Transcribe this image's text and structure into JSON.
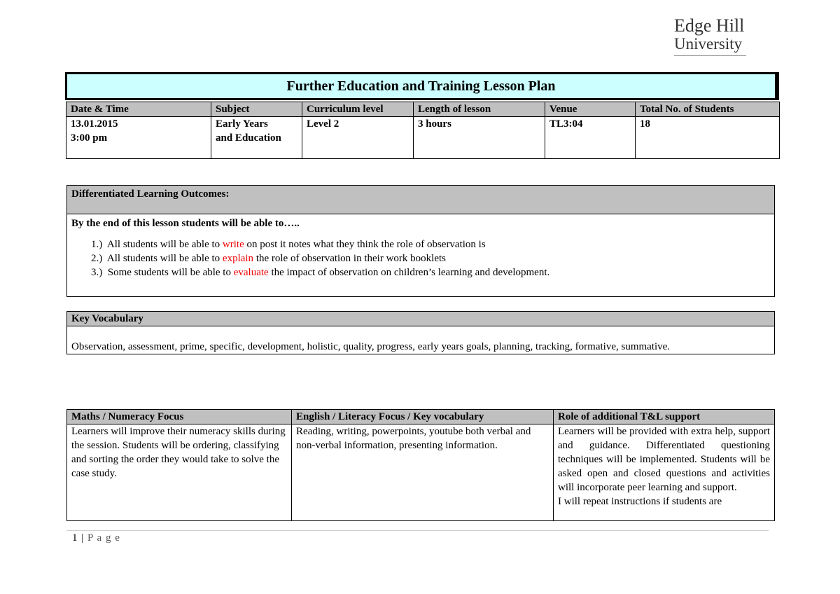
{
  "logo": {
    "line1": "Edge Hill",
    "line2": "University"
  },
  "title": "Further Education and Training Lesson Plan",
  "info": {
    "headers": [
      "Date & Time",
      "Subject",
      "Curriculum level",
      "Length of lesson",
      "Venue",
      "Total No. of Students"
    ],
    "values": [
      [
        "13.01.2015",
        "3:00 pm"
      ],
      [
        "Early Years",
        "and Education"
      ],
      [
        "Level 2"
      ],
      [
        "3 hours"
      ],
      [
        "TL3:04"
      ],
      [
        "18"
      ]
    ]
  },
  "outcomes": {
    "header": "Differentiated Learning Outcomes:",
    "intro": "By the end of this lesson students will be able to…..",
    "items": [
      {
        "pre": "All students will be able to ",
        "key": "write",
        "post": " on post it notes what they think the role of observation is"
      },
      {
        "pre": "All students will be able to ",
        "key": "explain",
        "post": " the role of observation in their work booklets"
      },
      {
        "pre": "Some students will be able to ",
        "key": "evaluate",
        "post": " the impact of observation on children’s learning and development."
      }
    ]
  },
  "vocab": {
    "header": "Key Vocabulary",
    "text": "Observation, assessment, prime, specific, development, holistic, quality, progress, early years goals, planning, tracking, formative, summative."
  },
  "focus": {
    "headers": [
      "Maths / Numeracy Focus",
      "English / Literacy Focus / Key vocabulary",
      "Role of additional T&L support"
    ],
    "cells": [
      "Learners will improve their numeracy skills during the session. Students will be ordering, classifying and sorting the order they would take to solve the case study.",
      "Reading, writing, powerpoints, youtube both verbal and non-verbal information, presenting information.",
      "Learners will be provided with extra help, support and guidance. Differentiated questioning techniques will be implemented. Students will be asked open and closed questions and activities will incorporate peer learning and support.",
      "I will repeat instructions if students are"
    ]
  },
  "footer": {
    "page": "1",
    "sep": " | ",
    "label": "P a g e"
  },
  "colors": {
    "title_bg": "#ccffff",
    "header_bg": "#c0c0c0",
    "highlight": "#e00000"
  }
}
